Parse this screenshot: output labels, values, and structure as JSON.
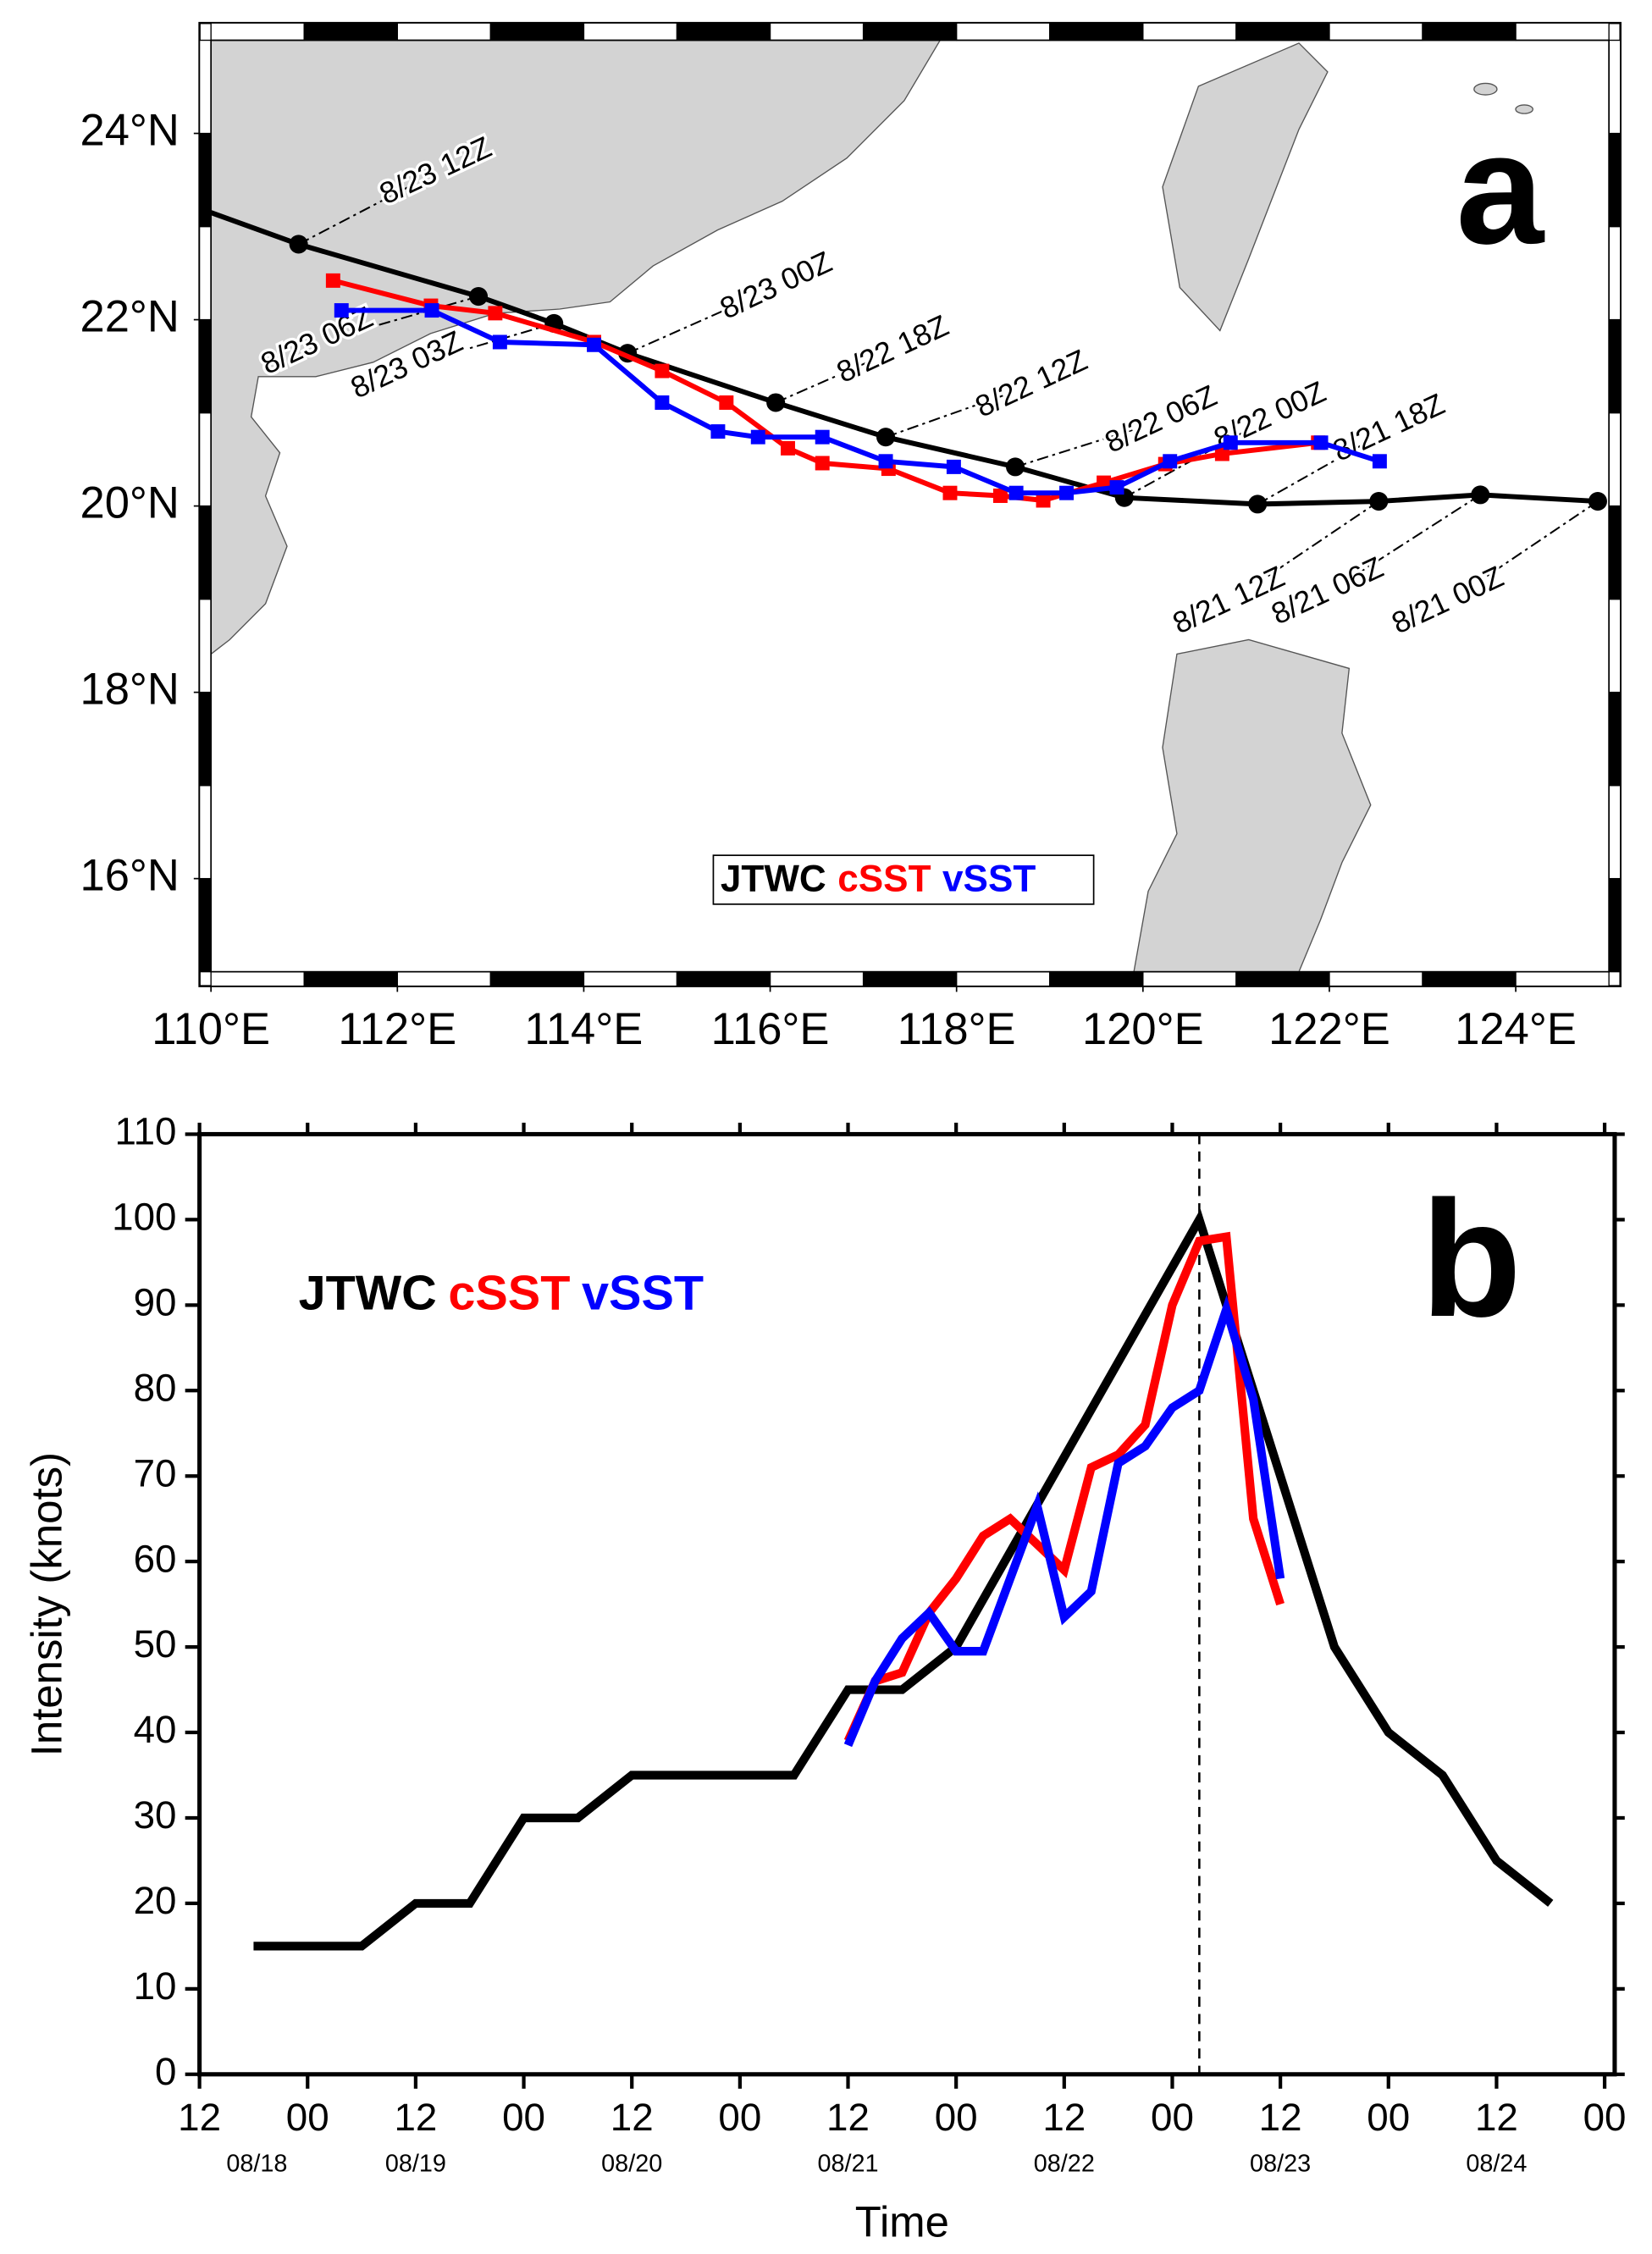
{
  "chart_data": [
    {
      "type": "track",
      "panel_label": "a",
      "xlim": [
        110,
        125
      ],
      "ylim": [
        15,
        25
      ],
      "xticks": [
        {
          "value": 110,
          "label": "110°E"
        },
        {
          "value": 112,
          "label": "112°E"
        },
        {
          "value": 114,
          "label": "114°E"
        },
        {
          "value": 116,
          "label": "116°E"
        },
        {
          "value": 118,
          "label": "118°E"
        },
        {
          "value": 120,
          "label": "120°E"
        },
        {
          "value": 122,
          "label": "122°E"
        },
        {
          "value": 124,
          "label": "124°E"
        }
      ],
      "yticks": [
        {
          "value": 16,
          "label": "16°N"
        },
        {
          "value": 18,
          "label": "18°N"
        },
        {
          "value": 20,
          "label": "20°N"
        },
        {
          "value": 22,
          "label": "22°N"
        },
        {
          "value": 24,
          "label": "24°N"
        }
      ],
      "legend": "lower center",
      "series": [
        {
          "name": "JTWC",
          "color": "#000000",
          "marker": "circle",
          "x": [
            110.0,
            110.94,
            112.87,
            113.68,
            114.47,
            116.06,
            117.24,
            118.63,
            119.8,
            121.23,
            122.53,
            123.62,
            124.88
          ],
          "y": [
            23.15,
            22.81,
            22.25,
            21.96,
            21.64,
            21.11,
            20.74,
            20.42,
            20.09,
            20.02,
            20.05,
            20.12,
            20.05
          ],
          "point_labels": [
            null,
            "8/23 12Z",
            "8/23 06Z",
            "8/23 03Z",
            "8/23 00Z",
            "8/22 18Z",
            "8/22 12Z",
            "8/22 06Z",
            "8/22 00Z",
            "8/21 18Z",
            "8/21 12Z",
            "8/21 06Z",
            "8/21 00Z"
          ]
        },
        {
          "name": "cSST",
          "color": "#ff0000",
          "marker": "square",
          "x": [
            111.31,
            112.36,
            113.05,
            114.11,
            114.84,
            115.53,
            116.19,
            116.56,
            117.27,
            117.93,
            118.47,
            118.93,
            119.58,
            120.24,
            120.85,
            121.88
          ],
          "y": [
            22.42,
            22.15,
            22.07,
            21.76,
            21.45,
            21.11,
            20.62,
            20.46,
            20.4,
            20.14,
            20.11,
            20.06,
            20.25,
            20.45,
            20.56,
            20.68
          ]
        },
        {
          "name": "vSST",
          "color": "#0000ff",
          "marker": "square",
          "x": [
            111.4,
            112.37,
            113.1,
            114.11,
            114.84,
            115.44,
            115.87,
            116.56,
            117.24,
            117.97,
            118.64,
            119.18,
            119.72,
            120.29,
            120.94,
            121.91,
            122.54
          ],
          "y": [
            22.1,
            22.1,
            21.76,
            21.73,
            21.11,
            20.8,
            20.74,
            20.74,
            20.48,
            20.42,
            20.14,
            20.14,
            20.2,
            20.48,
            20.68,
            20.68,
            20.48
          ]
        }
      ]
    },
    {
      "type": "line",
      "panel_label": "b",
      "xlabel": "Time",
      "ylabel": "Intensity (knots)",
      "xlim": [
        12,
        168
      ],
      "ylim": [
        0,
        110
      ],
      "xticks": [
        {
          "value": 12,
          "label": "12"
        },
        {
          "value": 24,
          "label": "00"
        },
        {
          "value": 36,
          "label": "12"
        },
        {
          "value": 48,
          "label": "00"
        },
        {
          "value": 60,
          "label": "12"
        },
        {
          "value": 72,
          "label": "00"
        },
        {
          "value": 84,
          "label": "12"
        },
        {
          "value": 96,
          "label": "00"
        },
        {
          "value": 108,
          "label": "12"
        },
        {
          "value": 120,
          "label": "00"
        },
        {
          "value": 132,
          "label": "12"
        },
        {
          "value": 144,
          "label": "00"
        },
        {
          "value": 156,
          "label": "12"
        },
        {
          "value": 168,
          "label": "00"
        }
      ],
      "date_labels": [
        {
          "value": 12,
          "label": "08/18"
        },
        {
          "value": 36,
          "label": "08/19"
        },
        {
          "value": 60,
          "label": "08/20"
        },
        {
          "value": 84,
          "label": "08/21"
        },
        {
          "value": 108,
          "label": "08/22"
        },
        {
          "value": 132,
          "label": "08/23"
        },
        {
          "value": 156,
          "label": "08/24"
        }
      ],
      "yticks": [
        0,
        10,
        20,
        30,
        40,
        50,
        60,
        70,
        80,
        90,
        100,
        110
      ],
      "vline": 123,
      "legend": "upper left",
      "series": [
        {
          "name": "JTWC",
          "color": "#000000",
          "x": [
            18,
            30,
            36,
            42,
            48,
            54,
            60,
            78,
            84,
            90,
            96,
            123,
            138,
            144,
            150,
            156,
            162
          ],
          "values": [
            15,
            15,
            20,
            20,
            30,
            30,
            35,
            35,
            45,
            45,
            50,
            100,
            50,
            40,
            35,
            25,
            20
          ]
        },
        {
          "name": "cSST",
          "color": "#ff0000",
          "x": [
            84,
            87,
            90,
            93,
            96,
            99,
            102,
            105,
            108,
            111,
            114,
            117,
            120,
            123,
            126,
            129,
            132
          ],
          "values": [
            39,
            46,
            47,
            54,
            58,
            63,
            65,
            62,
            59,
            71,
            72.5,
            76,
            90,
            97.5,
            98,
            65,
            55
          ]
        },
        {
          "name": "vSST",
          "color": "#0000ff",
          "x": [
            84,
            87,
            90,
            93,
            96,
            99,
            102,
            105,
            108,
            111,
            114,
            117,
            120,
            123,
            126,
            129,
            132
          ],
          "values": [
            38.5,
            46,
            51,
            54,
            49.5,
            49.5,
            58,
            66.5,
            53.5,
            56.5,
            71.5,
            73.5,
            78,
            80,
            89.5,
            79,
            58
          ]
        }
      ]
    }
  ]
}
